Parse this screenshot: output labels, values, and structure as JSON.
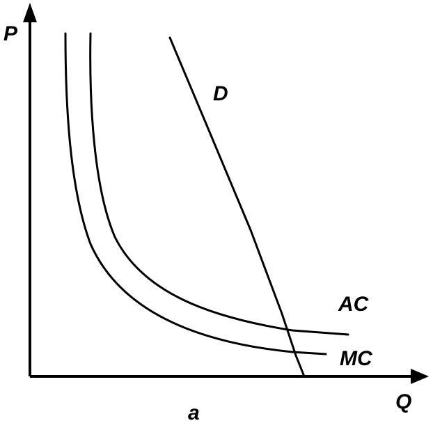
{
  "figure": {
    "axes": {
      "y_label": "P",
      "x_label": "Q"
    },
    "curves": [
      {
        "id": "demand",
        "label": "D"
      },
      {
        "id": "average_cost",
        "label": "AC"
      },
      {
        "id": "marginal_cost",
        "label": "MC"
      }
    ],
    "panel_label": "a",
    "colors": {
      "line": "#000000",
      "background": "#ffffff"
    }
  }
}
